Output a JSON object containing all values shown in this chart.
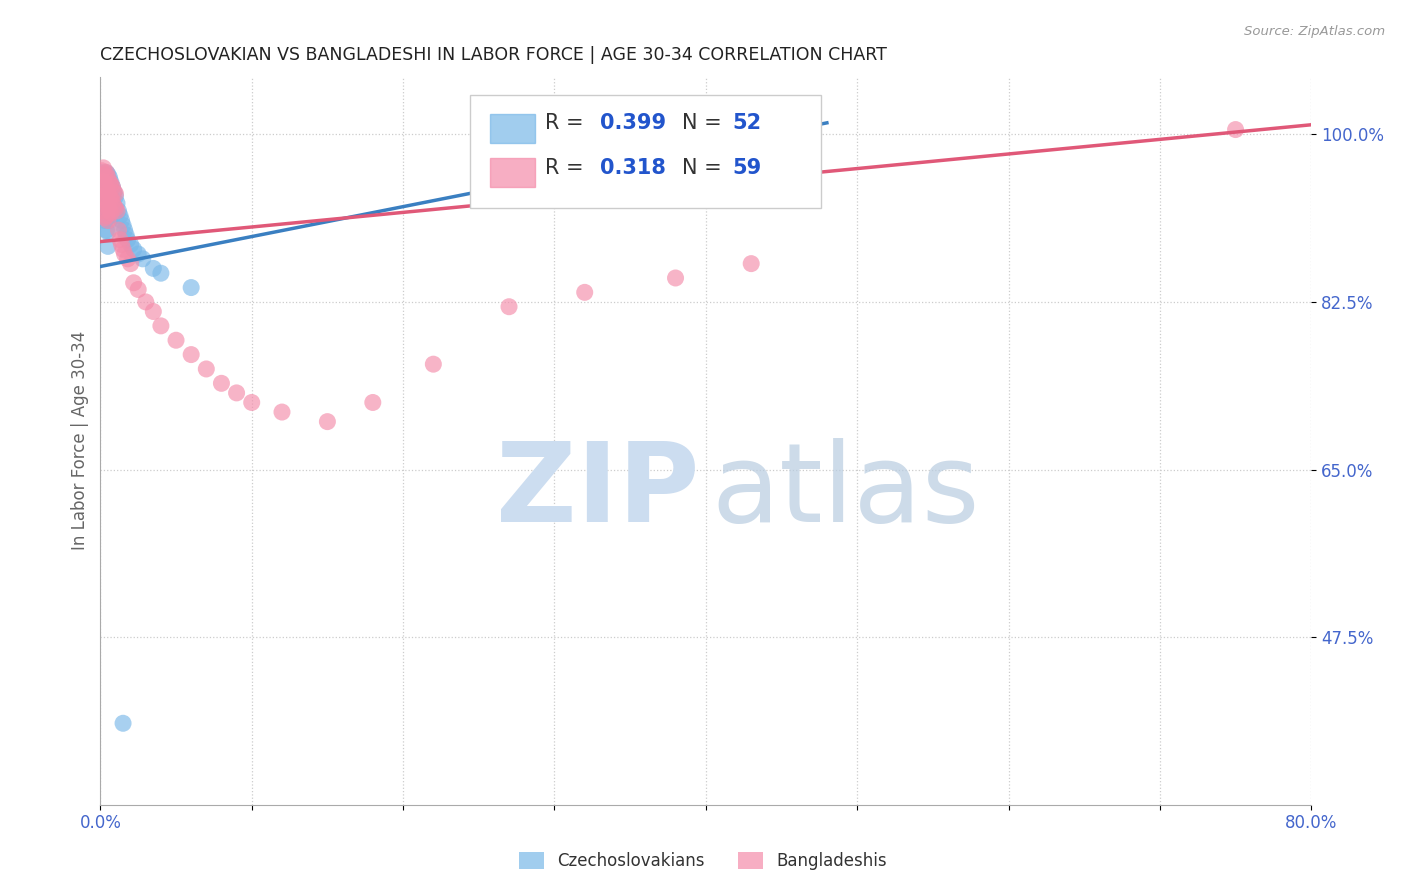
{
  "title": "CZECHOSLOVAKIAN VS BANGLADESHI IN LABOR FORCE | AGE 30-34 CORRELATION CHART",
  "source": "Source: ZipAtlas.com",
  "ylabel": "In Labor Force | Age 30-34",
  "xlim": [
    0.0,
    0.8
  ],
  "ylim": [
    0.3,
    1.06
  ],
  "ytick_positions": [
    0.475,
    0.65,
    0.825,
    1.0
  ],
  "ytick_labels": [
    "47.5%",
    "65.0%",
    "82.5%",
    "100.0%"
  ],
  "xtick_positions": [
    0.0,
    0.1,
    0.2,
    0.3,
    0.4,
    0.5,
    0.6,
    0.7,
    0.8
  ],
  "xtick_labels": [
    "0.0%",
    "",
    "",
    "",
    "",
    "",
    "",
    "",
    "80.0%"
  ],
  "r_czech": 0.399,
  "n_czech": 52,
  "r_bangla": 0.318,
  "n_bangla": 59,
  "czech_color": "#7ab8e8",
  "bangla_color": "#f48caa",
  "czech_line_color": "#3a7fc1",
  "bangla_line_color": "#e05878",
  "background_color": "#ffffff",
  "grid_color": "#cccccc",
  "tick_label_color": "#4466cc",
  "ylabel_color": "#666666",
  "title_color": "#222222",
  "source_color": "#999999",
  "watermark_zip_color": "#ccddf0",
  "watermark_atlas_color": "#b8cce0",
  "czech_x": [
    0.001,
    0.001,
    0.001,
    0.002,
    0.002,
    0.002,
    0.002,
    0.003,
    0.003,
    0.003,
    0.003,
    0.004,
    0.004,
    0.004,
    0.004,
    0.004,
    0.005,
    0.005,
    0.005,
    0.005,
    0.005,
    0.005,
    0.006,
    0.006,
    0.006,
    0.006,
    0.007,
    0.007,
    0.007,
    0.008,
    0.008,
    0.008,
    0.009,
    0.009,
    0.01,
    0.01,
    0.011,
    0.012,
    0.013,
    0.014,
    0.015,
    0.016,
    0.017,
    0.018,
    0.02,
    0.022,
    0.025,
    0.028,
    0.035,
    0.04,
    0.06,
    0.015
  ],
  "czech_y": [
    0.96,
    0.945,
    0.93,
    0.958,
    0.943,
    0.928,
    0.913,
    0.955,
    0.94,
    0.925,
    0.91,
    0.96,
    0.945,
    0.93,
    0.915,
    0.9,
    0.958,
    0.943,
    0.928,
    0.913,
    0.898,
    0.883,
    0.955,
    0.94,
    0.925,
    0.91,
    0.95,
    0.935,
    0.92,
    0.945,
    0.93,
    0.915,
    0.94,
    0.925,
    0.935,
    0.92,
    0.928,
    0.92,
    0.915,
    0.91,
    0.905,
    0.9,
    0.895,
    0.89,
    0.885,
    0.88,
    0.875,
    0.87,
    0.86,
    0.855,
    0.84,
    0.385
  ],
  "bangla_x": [
    0.001,
    0.001,
    0.001,
    0.002,
    0.002,
    0.002,
    0.002,
    0.003,
    0.003,
    0.003,
    0.003,
    0.004,
    0.004,
    0.004,
    0.004,
    0.005,
    0.005,
    0.005,
    0.005,
    0.006,
    0.006,
    0.006,
    0.007,
    0.007,
    0.007,
    0.008,
    0.008,
    0.009,
    0.009,
    0.01,
    0.01,
    0.011,
    0.012,
    0.013,
    0.014,
    0.015,
    0.016,
    0.018,
    0.02,
    0.022,
    0.025,
    0.03,
    0.035,
    0.04,
    0.05,
    0.06,
    0.07,
    0.08,
    0.09,
    0.1,
    0.12,
    0.15,
    0.18,
    0.22,
    0.27,
    0.32,
    0.38,
    0.43,
    0.75
  ],
  "bangla_y": [
    0.962,
    0.947,
    0.932,
    0.965,
    0.95,
    0.935,
    0.92,
    0.958,
    0.943,
    0.928,
    0.913,
    0.96,
    0.945,
    0.93,
    0.915,
    0.955,
    0.94,
    0.925,
    0.91,
    0.95,
    0.935,
    0.92,
    0.948,
    0.933,
    0.918,
    0.945,
    0.93,
    0.94,
    0.925,
    0.938,
    0.923,
    0.92,
    0.9,
    0.89,
    0.885,
    0.88,
    0.875,
    0.87,
    0.865,
    0.845,
    0.838,
    0.825,
    0.815,
    0.8,
    0.785,
    0.77,
    0.755,
    0.74,
    0.73,
    0.72,
    0.71,
    0.7,
    0.72,
    0.76,
    0.82,
    0.835,
    0.85,
    0.865,
    1.005
  ],
  "czech_line_x0": 0.0,
  "czech_line_y0": 0.862,
  "czech_line_x1": 0.48,
  "czech_line_y1": 1.012,
  "bangla_line_x0": 0.0,
  "bangla_line_y0": 0.888,
  "bangla_line_x1": 0.8,
  "bangla_line_y1": 1.01
}
